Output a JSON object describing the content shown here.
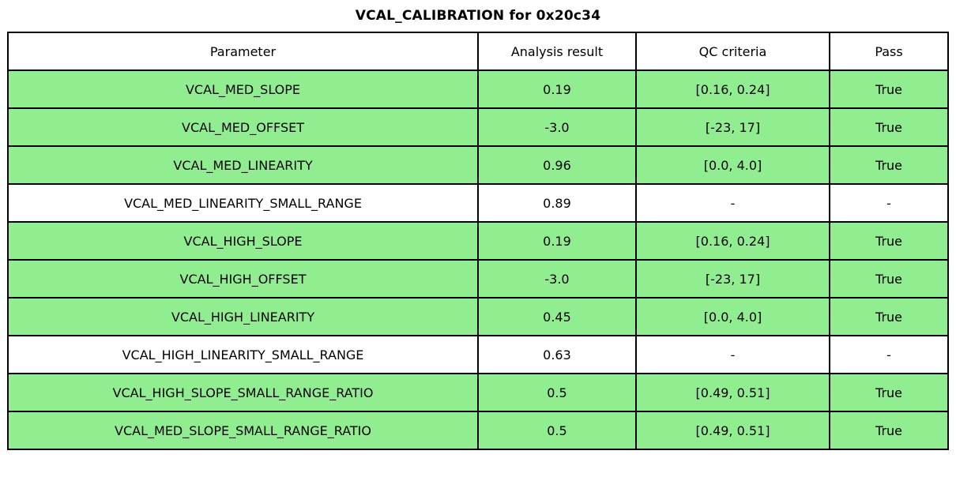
{
  "title": "VCAL_CALIBRATION for 0x20c34",
  "colors": {
    "pass_row_green": "#90EE90",
    "border": "#000000",
    "header_bg": "#FFFFFF",
    "text": "#000000"
  },
  "chart_data": {
    "type": "table",
    "title": "VCAL_CALIBRATION for 0x20c34",
    "columns": [
      "Parameter",
      "Analysis result",
      "QC criteria",
      "Pass"
    ],
    "rows": [
      {
        "parameter": "VCAL_MED_SLOPE",
        "analysis_result": "0.19",
        "qc_criteria": "[0.16, 0.24]",
        "pass": "True",
        "highlight": true
      },
      {
        "parameter": "VCAL_MED_OFFSET",
        "analysis_result": "-3.0",
        "qc_criteria": "[-23, 17]",
        "pass": "True",
        "highlight": true
      },
      {
        "parameter": "VCAL_MED_LINEARITY",
        "analysis_result": "0.96",
        "qc_criteria": "[0.0, 4.0]",
        "pass": "True",
        "highlight": true
      },
      {
        "parameter": "VCAL_MED_LINEARITY_SMALL_RANGE",
        "analysis_result": "0.89",
        "qc_criteria": "-",
        "pass": "-",
        "highlight": false
      },
      {
        "parameter": "VCAL_HIGH_SLOPE",
        "analysis_result": "0.19",
        "qc_criteria": "[0.16, 0.24]",
        "pass": "True",
        "highlight": true
      },
      {
        "parameter": "VCAL_HIGH_OFFSET",
        "analysis_result": "-3.0",
        "qc_criteria": "[-23, 17]",
        "pass": "True",
        "highlight": true
      },
      {
        "parameter": "VCAL_HIGH_LINEARITY",
        "analysis_result": "0.45",
        "qc_criteria": "[0.0, 4.0]",
        "pass": "True",
        "highlight": true
      },
      {
        "parameter": "VCAL_HIGH_LINEARITY_SMALL_RANGE",
        "analysis_result": "0.63",
        "qc_criteria": "-",
        "pass": "-",
        "highlight": false
      },
      {
        "parameter": "VCAL_HIGH_SLOPE_SMALL_RANGE_RATIO",
        "analysis_result": "0.5",
        "qc_criteria": "[0.49, 0.51]",
        "pass": "True",
        "highlight": true
      },
      {
        "parameter": "VCAL_MED_SLOPE_SMALL_RANGE_RATIO",
        "analysis_result": "0.5",
        "qc_criteria": "[0.49, 0.51]",
        "pass": "True",
        "highlight": true
      }
    ]
  }
}
